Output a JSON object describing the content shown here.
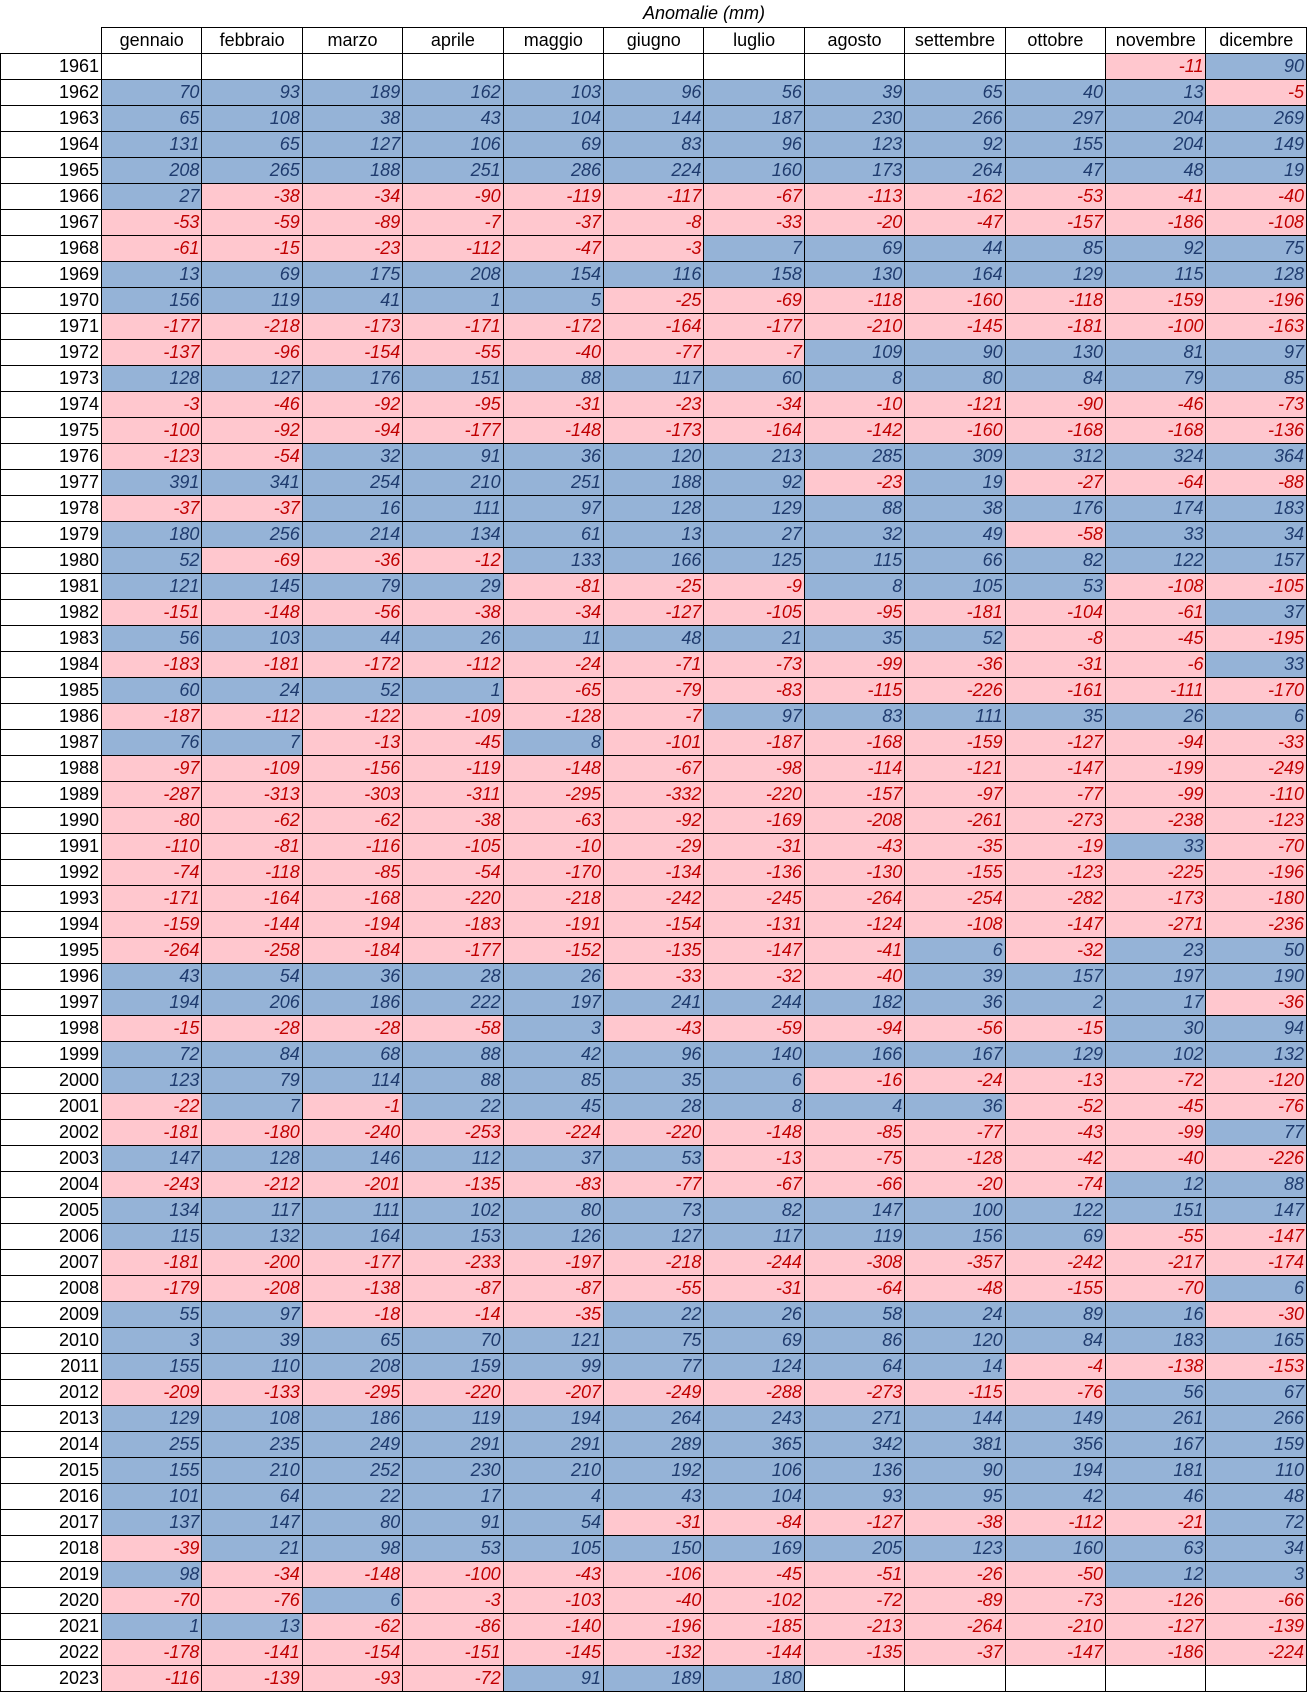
{
  "title": "Anomalie (mm)",
  "table": {
    "columns": [
      "gennaio",
      "febbraio",
      "marzo",
      "aprile",
      "maggio",
      "giugno",
      "luglio",
      "agosto",
      "settembre",
      "ottobre",
      "novembre",
      "dicembre"
    ],
    "rows": [
      {
        "year": 1961,
        "values": [
          null,
          null,
          null,
          null,
          null,
          null,
          null,
          null,
          null,
          null,
          -11,
          90
        ]
      },
      {
        "year": 1962,
        "values": [
          70,
          93,
          189,
          162,
          103,
          96,
          56,
          39,
          65,
          40,
          13,
          -5
        ]
      },
      {
        "year": 1963,
        "values": [
          65,
          108,
          38,
          43,
          104,
          144,
          187,
          230,
          266,
          297,
          204,
          269
        ]
      },
      {
        "year": 1964,
        "values": [
          131,
          65,
          127,
          106,
          69,
          83,
          96,
          123,
          92,
          155,
          204,
          149
        ]
      },
      {
        "year": 1965,
        "values": [
          208,
          265,
          188,
          251,
          286,
          224,
          160,
          173,
          264,
          47,
          48,
          19
        ]
      },
      {
        "year": 1966,
        "values": [
          27,
          -38,
          -34,
          -90,
          -119,
          -117,
          -67,
          -113,
          -162,
          -53,
          -41,
          -40
        ]
      },
      {
        "year": 1967,
        "values": [
          -53,
          -59,
          -89,
          -7,
          -37,
          -8,
          -33,
          -20,
          -47,
          -157,
          -186,
          -108
        ]
      },
      {
        "year": 1968,
        "values": [
          -61,
          -15,
          -23,
          -112,
          -47,
          -3,
          7,
          69,
          44,
          85,
          92,
          75
        ]
      },
      {
        "year": 1969,
        "values": [
          13,
          69,
          175,
          208,
          154,
          116,
          158,
          130,
          164,
          129,
          115,
          128
        ]
      },
      {
        "year": 1970,
        "values": [
          156,
          119,
          41,
          1,
          5,
          -25,
          -69,
          -118,
          -160,
          -118,
          -159,
          -196
        ]
      },
      {
        "year": 1971,
        "values": [
          -177,
          -218,
          -173,
          -171,
          -172,
          -164,
          -177,
          -210,
          -145,
          -181,
          -100,
          -163
        ]
      },
      {
        "year": 1972,
        "values": [
          -137,
          -96,
          -154,
          -55,
          -40,
          -77,
          -7,
          109,
          90,
          130,
          81,
          97
        ]
      },
      {
        "year": 1973,
        "values": [
          128,
          127,
          176,
          151,
          88,
          117,
          60,
          8,
          80,
          84,
          79,
          85
        ]
      },
      {
        "year": 1974,
        "values": [
          -3,
          -46,
          -92,
          -95,
          -31,
          -23,
          -34,
          -10,
          -121,
          -90,
          -46,
          -73
        ]
      },
      {
        "year": 1975,
        "values": [
          -100,
          -92,
          -94,
          -177,
          -148,
          -173,
          -164,
          -142,
          -160,
          -168,
          -168,
          -136
        ]
      },
      {
        "year": 1976,
        "values": [
          -123,
          -54,
          32,
          91,
          36,
          120,
          213,
          285,
          309,
          312,
          324,
          364
        ]
      },
      {
        "year": 1977,
        "values": [
          391,
          341,
          254,
          210,
          251,
          188,
          92,
          -23,
          19,
          -27,
          -64,
          -88
        ]
      },
      {
        "year": 1978,
        "values": [
          -37,
          -37,
          16,
          111,
          97,
          128,
          129,
          88,
          38,
          176,
          174,
          183
        ]
      },
      {
        "year": 1979,
        "values": [
          180,
          256,
          214,
          134,
          61,
          13,
          27,
          32,
          49,
          -58,
          33,
          34
        ]
      },
      {
        "year": 1980,
        "values": [
          52,
          -69,
          -36,
          -12,
          133,
          166,
          125,
          115,
          66,
          82,
          122,
          157
        ]
      },
      {
        "year": 1981,
        "values": [
          121,
          145,
          79,
          29,
          -81,
          -25,
          -9,
          8,
          105,
          53,
          -108,
          -105
        ]
      },
      {
        "year": 1982,
        "values": [
          -151,
          -148,
          -56,
          -38,
          -34,
          -127,
          -105,
          -95,
          -181,
          -104,
          -61,
          37
        ]
      },
      {
        "year": 1983,
        "values": [
          56,
          103,
          44,
          26,
          11,
          48,
          21,
          35,
          52,
          -8,
          -45,
          -195
        ]
      },
      {
        "year": 1984,
        "values": [
          -183,
          -181,
          -172,
          -112,
          -24,
          -71,
          -73,
          -99,
          -36,
          -31,
          -6,
          33
        ]
      },
      {
        "year": 1985,
        "values": [
          60,
          24,
          52,
          1,
          -65,
          -79,
          -83,
          -115,
          -226,
          -161,
          -111,
          -170
        ]
      },
      {
        "year": 1986,
        "values": [
          -187,
          -112,
          -122,
          -109,
          -128,
          -7,
          97,
          83,
          111,
          35,
          26,
          6
        ]
      },
      {
        "year": 1987,
        "values": [
          76,
          7,
          -13,
          -45,
          8,
          -101,
          -187,
          -168,
          -159,
          -127,
          -94,
          -33
        ]
      },
      {
        "year": 1988,
        "values": [
          -97,
          -109,
          -156,
          -119,
          -148,
          -67,
          -98,
          -114,
          -121,
          -147,
          -199,
          -249
        ]
      },
      {
        "year": 1989,
        "values": [
          -287,
          -313,
          -303,
          -311,
          -295,
          -332,
          -220,
          -157,
          -97,
          -77,
          -99,
          -110
        ]
      },
      {
        "year": 1990,
        "values": [
          -80,
          -62,
          -62,
          -38,
          -63,
          -92,
          -169,
          -208,
          -261,
          -273,
          -238,
          -123
        ]
      },
      {
        "year": 1991,
        "values": [
          -110,
          -81,
          -116,
          -105,
          -10,
          -29,
          -31,
          -43,
          -35,
          -19,
          33,
          -70
        ]
      },
      {
        "year": 1992,
        "values": [
          -74,
          -118,
          -85,
          -54,
          -170,
          -134,
          -136,
          -130,
          -155,
          -123,
          -225,
          -196
        ]
      },
      {
        "year": 1993,
        "values": [
          -171,
          -164,
          -168,
          -220,
          -218,
          -242,
          -245,
          -264,
          -254,
          -282,
          -173,
          -180
        ]
      },
      {
        "year": 1994,
        "values": [
          -159,
          -144,
          -194,
          -183,
          -191,
          -154,
          -131,
          -124,
          -108,
          -147,
          -271,
          -236
        ]
      },
      {
        "year": 1995,
        "values": [
          -264,
          -258,
          -184,
          -177,
          -152,
          -135,
          -147,
          -41,
          6,
          -32,
          23,
          50
        ]
      },
      {
        "year": 1996,
        "values": [
          43,
          54,
          36,
          28,
          26,
          -33,
          -32,
          -40,
          39,
          157,
          197,
          190
        ]
      },
      {
        "year": 1997,
        "values": [
          194,
          206,
          186,
          222,
          197,
          241,
          244,
          182,
          36,
          2,
          17,
          -36
        ]
      },
      {
        "year": 1998,
        "values": [
          -15,
          -28,
          -28,
          -58,
          3,
          -43,
          -59,
          -94,
          -56,
          -15,
          30,
          94
        ]
      },
      {
        "year": 1999,
        "values": [
          72,
          84,
          68,
          88,
          42,
          96,
          140,
          166,
          167,
          129,
          102,
          132
        ]
      },
      {
        "year": 2000,
        "values": [
          123,
          79,
          114,
          88,
          85,
          35,
          6,
          -16,
          -24,
          -13,
          -72,
          -120
        ]
      },
      {
        "year": 2001,
        "values": [
          -22,
          7,
          -1,
          22,
          45,
          28,
          8,
          4,
          36,
          -52,
          -45,
          -76
        ]
      },
      {
        "year": 2002,
        "values": [
          -181,
          -180,
          -240,
          -253,
          -224,
          -220,
          -148,
          -85,
          -77,
          -43,
          -99,
          77
        ]
      },
      {
        "year": 2003,
        "values": [
          147,
          128,
          146,
          112,
          37,
          53,
          -13,
          -75,
          -128,
          -42,
          -40,
          -226
        ]
      },
      {
        "year": 2004,
        "values": [
          -243,
          -212,
          -201,
          -135,
          -83,
          -77,
          -67,
          -66,
          -20,
          -74,
          12,
          88
        ]
      },
      {
        "year": 2005,
        "values": [
          134,
          117,
          111,
          102,
          80,
          73,
          82,
          147,
          100,
          122,
          151,
          147
        ]
      },
      {
        "year": 2006,
        "values": [
          115,
          132,
          164,
          153,
          126,
          127,
          117,
          119,
          156,
          69,
          -55,
          -147
        ]
      },
      {
        "year": 2007,
        "values": [
          -181,
          -200,
          -177,
          -233,
          -197,
          -218,
          -244,
          -308,
          -357,
          -242,
          -217,
          -174
        ]
      },
      {
        "year": 2008,
        "values": [
          -179,
          -208,
          -138,
          -87,
          -87,
          -55,
          -31,
          -64,
          -48,
          -155,
          -70,
          6
        ]
      },
      {
        "year": 2009,
        "values": [
          55,
          97,
          -18,
          -14,
          -35,
          22,
          26,
          58,
          24,
          89,
          16,
          -30
        ]
      },
      {
        "year": 2010,
        "values": [
          3,
          39,
          65,
          70,
          121,
          75,
          69,
          86,
          120,
          84,
          183,
          165
        ]
      },
      {
        "year": 2011,
        "values": [
          155,
          110,
          208,
          159,
          99,
          77,
          124,
          64,
          14,
          -4,
          -138,
          -153
        ]
      },
      {
        "year": 2012,
        "values": [
          -209,
          -133,
          -295,
          -220,
          -207,
          -249,
          -288,
          -273,
          -115,
          -76,
          56,
          67
        ]
      },
      {
        "year": 2013,
        "values": [
          129,
          108,
          186,
          119,
          194,
          264,
          243,
          271,
          144,
          149,
          261,
          266
        ]
      },
      {
        "year": 2014,
        "values": [
          255,
          235,
          249,
          291,
          291,
          289,
          365,
          342,
          381,
          356,
          167,
          159
        ]
      },
      {
        "year": 2015,
        "values": [
          155,
          210,
          252,
          230,
          210,
          192,
          106,
          136,
          90,
          194,
          181,
          110
        ]
      },
      {
        "year": 2016,
        "values": [
          101,
          64,
          22,
          17,
          4,
          43,
          104,
          93,
          95,
          42,
          46,
          48
        ]
      },
      {
        "year": 2017,
        "values": [
          137,
          147,
          80,
          91,
          54,
          -31,
          -84,
          -127,
          -38,
          -112,
          -21,
          72
        ]
      },
      {
        "year": 2018,
        "values": [
          -39,
          21,
          98,
          53,
          105,
          150,
          169,
          205,
          123,
          160,
          63,
          34
        ]
      },
      {
        "year": 2019,
        "values": [
          98,
          -34,
          -148,
          -100,
          -43,
          -106,
          -45,
          -51,
          -26,
          -50,
          12,
          3
        ]
      },
      {
        "year": 2020,
        "values": [
          -70,
          -76,
          6,
          -3,
          -103,
          -40,
          -102,
          -72,
          -89,
          -73,
          -126,
          -66
        ]
      },
      {
        "year": 2021,
        "values": [
          1,
          13,
          -62,
          -86,
          -140,
          -196,
          -185,
          -213,
          -264,
          -210,
          -127,
          -139
        ]
      },
      {
        "year": 2022,
        "values": [
          -178,
          -141,
          -154,
          -151,
          -145,
          -132,
          -144,
          -135,
          -37,
          -147,
          -186,
          -224
        ]
      },
      {
        "year": 2023,
        "values": [
          -116,
          -139,
          -93,
          -72,
          91,
          189,
          180,
          null,
          null,
          null,
          null,
          null
        ]
      }
    ]
  }
}
